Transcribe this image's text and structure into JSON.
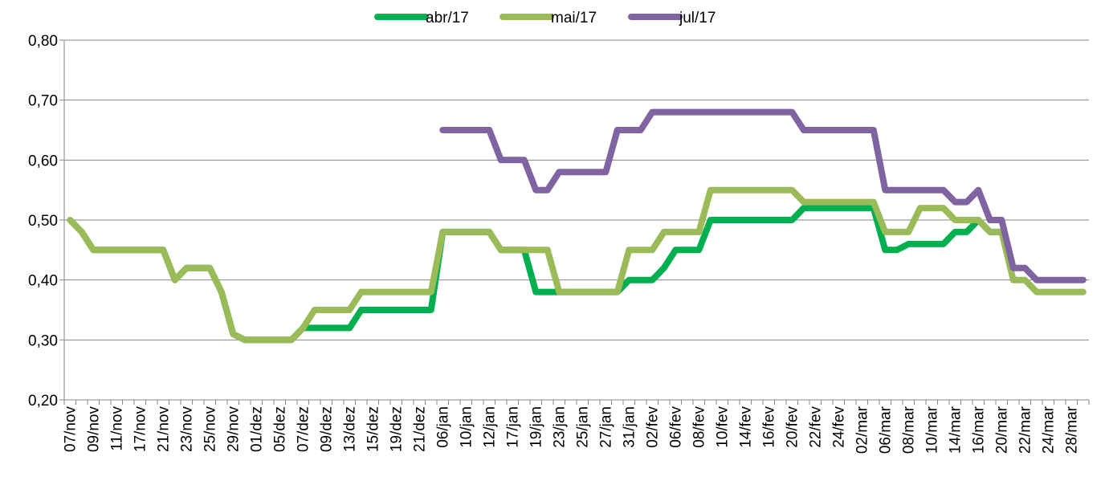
{
  "chart_data": {
    "type": "line",
    "categories": [
      "07/nov",
      null,
      "09/nov",
      null,
      "11/nov",
      null,
      "17/nov",
      null,
      "21/nov",
      null,
      "23/nov",
      null,
      "25/nov",
      null,
      "29/nov",
      null,
      "01/dez",
      null,
      "05/dez",
      null,
      "07/dez",
      null,
      "09/dez",
      null,
      "13/dez",
      null,
      "15/dez",
      null,
      "19/dez",
      null,
      "21/dez",
      null,
      "06/jan",
      null,
      "10/jan",
      null,
      "12/jan",
      null,
      "17/jan",
      null,
      "19/jan",
      null,
      "23/jan",
      null,
      "25/jan",
      null,
      "27/jan",
      null,
      "31/jan",
      null,
      "02/fev",
      null,
      "06/fev",
      null,
      "08/fev",
      null,
      "10/fev",
      null,
      "14/fev",
      null,
      "16/fev",
      null,
      "20/fev",
      null,
      "22/fev",
      null,
      "24/fev",
      null,
      "02/mar",
      null,
      "06/mar",
      null,
      "08/mar",
      null,
      "10/mar",
      null,
      "14/mar",
      null,
      "16/mar",
      null,
      "20/mar",
      null,
      "22/mar",
      null,
      "24/mar",
      null,
      "28/mar",
      null
    ],
    "series": [
      {
        "name": "abr/17",
        "color": "#00b050",
        "values": [
          0.5,
          0.48,
          0.45,
          0.45,
          0.45,
          0.45,
          0.45,
          0.45,
          0.45,
          0.4,
          0.42,
          0.42,
          0.42,
          0.38,
          0.31,
          0.3,
          0.3,
          0.3,
          0.3,
          0.3,
          0.32,
          0.32,
          0.32,
          0.32,
          0.32,
          0.35,
          0.35,
          0.35,
          0.35,
          0.35,
          0.35,
          0.35,
          0.48,
          0.48,
          0.48,
          0.48,
          0.48,
          0.45,
          0.45,
          0.45,
          0.38,
          0.38,
          0.38,
          0.38,
          0.38,
          0.38,
          0.38,
          0.38,
          0.4,
          0.4,
          0.4,
          0.42,
          0.45,
          0.45,
          0.45,
          0.5,
          0.5,
          0.5,
          0.5,
          0.5,
          0.5,
          0.5,
          0.5,
          0.52,
          0.52,
          0.52,
          0.52,
          0.52,
          0.52,
          0.52,
          0.45,
          0.45,
          0.46,
          0.46,
          0.46,
          0.46,
          0.48,
          0.48,
          0.5,
          0.48,
          0.48,
          null,
          null,
          null,
          null,
          null,
          null,
          null
        ]
      },
      {
        "name": "mai/17",
        "color": "#9bbb59",
        "values": [
          0.5,
          0.48,
          0.45,
          0.45,
          0.45,
          0.45,
          0.45,
          0.45,
          0.45,
          0.4,
          0.42,
          0.42,
          0.42,
          0.38,
          0.31,
          0.3,
          0.3,
          0.3,
          0.3,
          0.3,
          0.32,
          0.35,
          0.35,
          0.35,
          0.35,
          0.38,
          0.38,
          0.38,
          0.38,
          0.38,
          0.38,
          0.38,
          0.48,
          0.48,
          0.48,
          0.48,
          0.48,
          0.45,
          0.45,
          0.45,
          0.45,
          0.45,
          0.38,
          0.38,
          0.38,
          0.38,
          0.38,
          0.38,
          0.45,
          0.45,
          0.45,
          0.48,
          0.48,
          0.48,
          0.48,
          0.55,
          0.55,
          0.55,
          0.55,
          0.55,
          0.55,
          0.55,
          0.55,
          0.53,
          0.53,
          0.53,
          0.53,
          0.53,
          0.53,
          0.53,
          0.48,
          0.48,
          0.48,
          0.52,
          0.52,
          0.52,
          0.5,
          0.5,
          0.5,
          0.48,
          0.48,
          0.4,
          0.4,
          0.38,
          0.38,
          0.38,
          0.38,
          0.38
        ]
      },
      {
        "name": "jul/17",
        "color": "#8064a2",
        "values": [
          null,
          null,
          null,
          null,
          null,
          null,
          null,
          null,
          null,
          null,
          null,
          null,
          null,
          null,
          null,
          null,
          null,
          null,
          null,
          null,
          null,
          null,
          null,
          null,
          null,
          null,
          null,
          null,
          null,
          null,
          null,
          null,
          0.65,
          0.65,
          0.65,
          0.65,
          0.65,
          0.6,
          0.6,
          0.6,
          0.55,
          0.55,
          0.58,
          0.58,
          0.58,
          0.58,
          0.58,
          0.65,
          0.65,
          0.65,
          0.68,
          0.68,
          0.68,
          0.68,
          0.68,
          0.68,
          0.68,
          0.68,
          0.68,
          0.68,
          0.68,
          0.68,
          0.68,
          0.65,
          0.65,
          0.65,
          0.65,
          0.65,
          0.65,
          0.65,
          0.55,
          0.55,
          0.55,
          0.55,
          0.55,
          0.55,
          0.53,
          0.53,
          0.55,
          0.5,
          0.5,
          0.42,
          0.42,
          0.4,
          0.4,
          0.4,
          0.4,
          0.4
        ]
      }
    ],
    "ylim": [
      0.2,
      0.8
    ],
    "yticks": [
      {
        "value": 0.2,
        "label": "0,20"
      },
      {
        "value": 0.3,
        "label": "0,30"
      },
      {
        "value": 0.4,
        "label": "0,40"
      },
      {
        "value": 0.5,
        "label": "0,50"
      },
      {
        "value": 0.6,
        "label": "0,60"
      },
      {
        "value": 0.7,
        "label": "0,70"
      },
      {
        "value": 0.8,
        "label": "0,80"
      }
    ],
    "grid": true,
    "legend": "top"
  }
}
